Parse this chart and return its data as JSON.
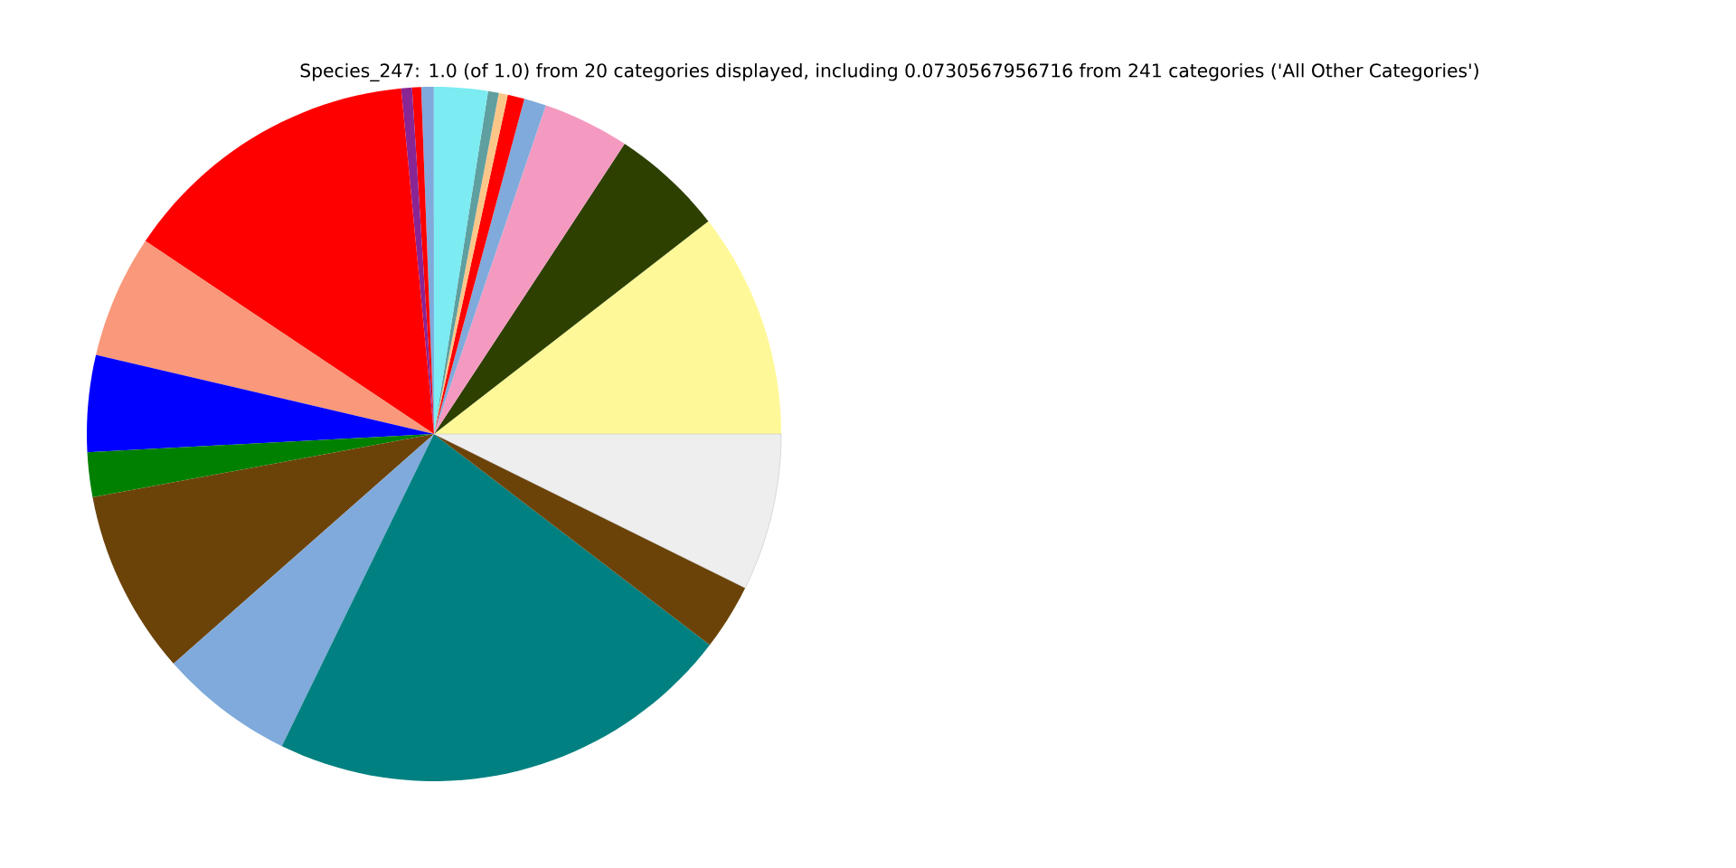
{
  "chart_data": {
    "type": "pie",
    "title": "Species_247: 1.0 (of 1.0) from 20 categories displayed, including 0.0730567956716 from 241 categories ('All Other Categories')",
    "categories": [
      null,
      null,
      null,
      null,
      null,
      null,
      null,
      null,
      null,
      null,
      null,
      null,
      null,
      null,
      null,
      null,
      null,
      null,
      null,
      null
    ],
    "values": [
      10.5,
      5.25,
      4.03,
      1.03,
      0.78,
      0.42,
      0.5,
      2.5,
      0.58,
      0.42,
      0.5,
      14.11,
      5.72,
      4.5,
      2.08,
      8.58,
      6.28,
      21.83,
      3.08,
      7.31
    ],
    "colors": [
      "#fff899",
      "#2d4000",
      "#f49ac1",
      "#7faadb",
      "#ff0000",
      "#fdc689",
      "#5f9f9f",
      "#7cebf2",
      "#7faadb",
      "#ff0000",
      "#8a2594",
      "#ff0000",
      "#f9987a",
      "#0000ff",
      "#008000",
      "#6b4309",
      "#7faadb",
      "#008080",
      "#6b4309",
      "#eeeeee"
    ]
  }
}
